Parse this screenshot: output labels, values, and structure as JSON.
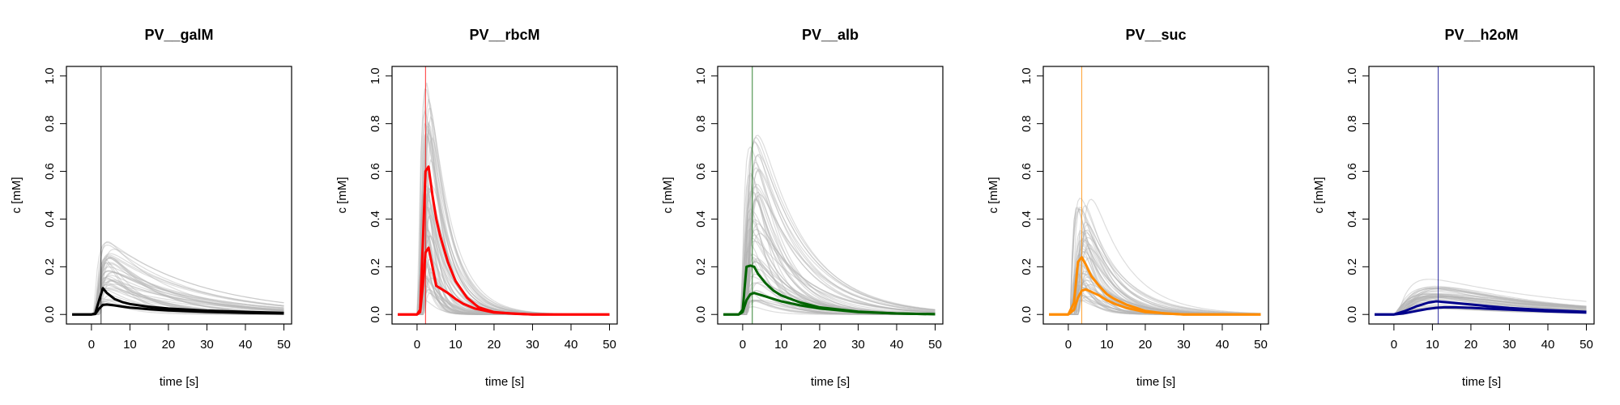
{
  "chart_data": [
    {
      "type": "line",
      "title": "PV__galM",
      "xlabel": "time [s]",
      "ylabel": "c [mM]",
      "xlim": [
        -6.5,
        52
      ],
      "ylim": [
        -0.04,
        1.04
      ],
      "xticks": [
        "0",
        "10",
        "20",
        "30",
        "40",
        "50"
      ],
      "yticks": [
        "0.0",
        "0.2",
        "0.4",
        "0.6",
        "0.8",
        "1.0"
      ],
      "grid": false,
      "legend": "none",
      "highlight_color": "#000000",
      "background_color": "#b3b3b3",
      "vline_x": 2.5,
      "series": [
        {
          "x": [
            -5,
            0,
            1,
            2,
            3,
            4,
            6,
            8,
            10,
            15,
            20,
            30,
            40,
            50
          ],
          "y": [
            0,
            0,
            0.005,
            0.06,
            0.11,
            0.09,
            0.065,
            0.052,
            0.044,
            0.032,
            0.025,
            0.016,
            0.011,
            0.007
          ]
        },
        {
          "x": [
            -5,
            0,
            1,
            2,
            3,
            4,
            6,
            8,
            10,
            15,
            20,
            30,
            40,
            50
          ],
          "y": [
            0,
            0,
            0.002,
            0.025,
            0.04,
            0.042,
            0.038,
            0.033,
            0.029,
            0.022,
            0.017,
            0.011,
            0.007,
            0.004
          ]
        }
      ]
    },
    {
      "type": "line",
      "title": "PV__rbcM",
      "xlabel": "time [s]",
      "ylabel": "c [mM]",
      "xlim": [
        -6.5,
        52
      ],
      "ylim": [
        -0.04,
        1.04
      ],
      "xticks": [
        "0",
        "10",
        "20",
        "30",
        "40",
        "50"
      ],
      "yticks": [
        "0.0",
        "0.2",
        "0.4",
        "0.6",
        "0.8",
        "1.0"
      ],
      "grid": false,
      "legend": "none",
      "highlight_color": "#ff0000",
      "background_color": "#b3b3b3",
      "vline_x": 2.2,
      "series": [
        {
          "x": [
            -5,
            0,
            0.8,
            1.5,
            2.2,
            3,
            4,
            5,
            6,
            8,
            10,
            13,
            16,
            20,
            25,
            30,
            40,
            50
          ],
          "y": [
            0,
            0,
            0.02,
            0.3,
            0.6,
            0.62,
            0.5,
            0.4,
            0.33,
            0.22,
            0.14,
            0.07,
            0.03,
            0.01,
            0.003,
            0,
            0,
            0
          ]
        },
        {
          "x": [
            -5,
            0,
            0.8,
            1.5,
            2.2,
            3,
            4,
            5,
            6,
            8,
            10,
            12,
            15,
            20,
            30,
            40,
            50
          ],
          "y": [
            0,
            0,
            0.01,
            0.12,
            0.26,
            0.28,
            0.2,
            0.12,
            0.11,
            0.09,
            0.065,
            0.045,
            0.025,
            0.008,
            0,
            0,
            0
          ]
        }
      ]
    },
    {
      "type": "line",
      "title": "PV__alb",
      "xlabel": "time [s]",
      "ylabel": "c [mM]",
      "xlim": [
        -6.5,
        52
      ],
      "ylim": [
        -0.04,
        1.04
      ],
      "xticks": [
        "0",
        "10",
        "20",
        "30",
        "40",
        "50"
      ],
      "yticks": [
        "0.0",
        "0.2",
        "0.4",
        "0.6",
        "0.8",
        "1.0"
      ],
      "grid": false,
      "legend": "none",
      "highlight_color": "#006400",
      "background_color": "#b3b3b3",
      "vline_x": 2.5,
      "series": [
        {
          "x": [
            -5,
            -1,
            0,
            1,
            2,
            3,
            4,
            6,
            8,
            10,
            15,
            20,
            30,
            40,
            50
          ],
          "y": [
            0,
            0,
            0.02,
            0.2,
            0.205,
            0.2,
            0.17,
            0.13,
            0.1,
            0.08,
            0.05,
            0.03,
            0.012,
            0.004,
            0.001
          ]
        },
        {
          "x": [
            -5,
            -1,
            0,
            1,
            2,
            3,
            4,
            6,
            8,
            10,
            15,
            20,
            30,
            40,
            50
          ],
          "y": [
            0,
            0,
            0.01,
            0.06,
            0.085,
            0.09,
            0.085,
            0.075,
            0.065,
            0.055,
            0.038,
            0.025,
            0.01,
            0.004,
            0.001
          ]
        }
      ]
    },
    {
      "type": "line",
      "title": "PV__suc",
      "xlabel": "time [s]",
      "ylabel": "c [mM]",
      "xlim": [
        -6.5,
        52
      ],
      "ylim": [
        -0.04,
        1.04
      ],
      "xticks": [
        "0",
        "10",
        "20",
        "30",
        "40",
        "50"
      ],
      "yticks": [
        "0.0",
        "0.2",
        "0.4",
        "0.6",
        "0.8",
        "1.0"
      ],
      "grid": false,
      "legend": "none",
      "highlight_color": "#ff8c00",
      "background_color": "#b3b3b3",
      "vline_x": 3.5,
      "series": [
        {
          "x": [
            -5,
            0,
            1.5,
            2.5,
            3.5,
            4.5,
            6,
            8,
            10,
            12,
            15,
            20,
            25,
            30,
            40,
            50
          ],
          "y": [
            0,
            0,
            0.05,
            0.22,
            0.24,
            0.21,
            0.16,
            0.12,
            0.085,
            0.065,
            0.042,
            0.015,
            0.004,
            0,
            0,
            0
          ]
        },
        {
          "x": [
            -5,
            0,
            1.5,
            2.5,
            3.5,
            4.5,
            6,
            8,
            10,
            12,
            15,
            20,
            30,
            40,
            50
          ],
          "y": [
            0,
            0,
            0.02,
            0.07,
            0.1,
            0.105,
            0.095,
            0.08,
            0.06,
            0.045,
            0.028,
            0.01,
            0,
            0,
            0
          ]
        }
      ]
    },
    {
      "type": "line",
      "title": "PV__h2oM",
      "xlabel": "time [s]",
      "ylabel": "c [mM]",
      "xlim": [
        -6.5,
        52
      ],
      "ylim": [
        -0.04,
        1.04
      ],
      "xticks": [
        "0",
        "10",
        "20",
        "30",
        "40",
        "50"
      ],
      "yticks": [
        "0.0",
        "0.2",
        "0.4",
        "0.6",
        "0.8",
        "1.0"
      ],
      "grid": false,
      "legend": "none",
      "highlight_color": "#00008b",
      "background_color": "#b3b3b3",
      "vline_x": 11.5,
      "series": [
        {
          "x": [
            -5,
            0,
            3,
            6,
            9,
            11,
            13,
            16,
            20,
            25,
            30,
            40,
            50
          ],
          "y": [
            0,
            0,
            0.015,
            0.035,
            0.05,
            0.055,
            0.052,
            0.048,
            0.042,
            0.034,
            0.027,
            0.018,
            0.011
          ]
        },
        {
          "x": [
            -5,
            0,
            3,
            6,
            9,
            11,
            13,
            16,
            20,
            25,
            30,
            40,
            50
          ],
          "y": [
            0,
            0,
            0.006,
            0.015,
            0.024,
            0.028,
            0.03,
            0.03,
            0.028,
            0.024,
            0.02,
            0.013,
            0.008
          ]
        }
      ]
    }
  ]
}
